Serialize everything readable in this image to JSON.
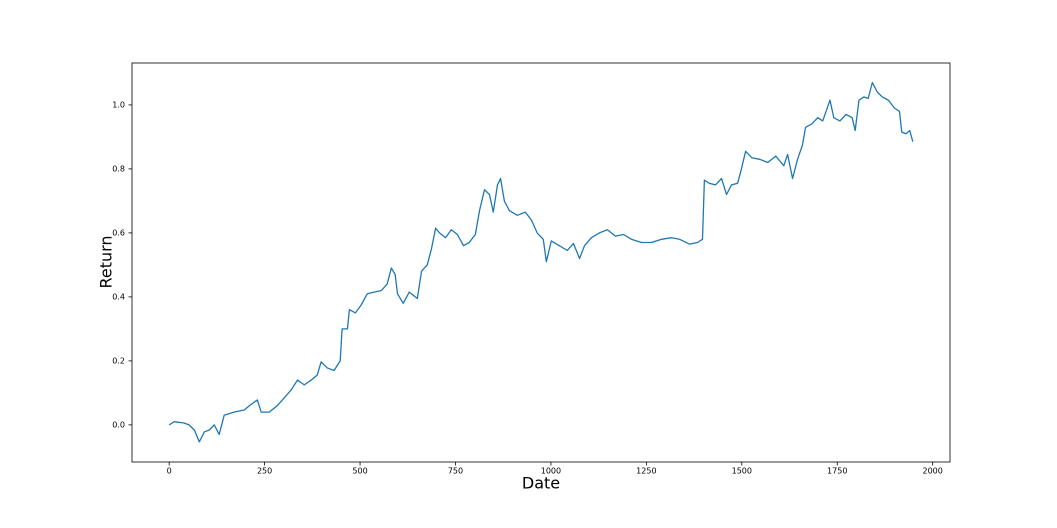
{
  "chart_data": {
    "type": "line",
    "xlabel": "Date",
    "ylabel": "Return",
    "color": "#1f77b4",
    "grid": false,
    "xlim": [
      -97.4,
      2045.4
    ],
    "xticks": [
      0,
      250,
      500,
      750,
      1000,
      1250,
      1500,
      1750,
      2000
    ],
    "ylim": [
      -0.116,
      1.131
    ],
    "yticks": [
      {
        "value": 0,
        "label": "0.0"
      },
      0.2,
      0.4,
      0.6,
      0.8,
      {
        "value": 1,
        "label": "1.0"
      }
    ],
    "x": [
      0,
      13,
      39,
      52,
      66,
      79,
      92,
      105,
      118,
      131,
      144,
      170,
      197,
      210,
      231,
      241,
      262,
      283,
      301,
      320,
      336,
      354,
      372,
      388,
      398,
      414,
      432,
      448,
      453,
      467,
      472,
      488,
      503,
      519,
      537,
      556,
      571,
      582,
      592,
      598,
      613,
      629,
      650,
      661,
      676,
      687,
      698,
      708,
      724,
      739,
      755,
      771,
      786,
      802,
      813,
      826,
      839,
      849,
      860,
      868,
      878,
      891,
      912,
      933,
      949,
      964,
      980,
      988,
      1001,
      1022,
      1043,
      1059,
      1075,
      1088,
      1106,
      1127,
      1148,
      1169,
      1190,
      1211,
      1237,
      1263,
      1290,
      1316,
      1337,
      1363,
      1384,
      1397,
      1402,
      1415,
      1431,
      1447,
      1460,
      1473,
      1489,
      1499,
      1510,
      1526,
      1547,
      1568,
      1589,
      1610,
      1620,
      1633,
      1646,
      1659,
      1667,
      1683,
      1699,
      1712,
      1731,
      1741,
      1757,
      1773,
      1789,
      1797,
      1807,
      1820,
      1831,
      1842,
      1855,
      1868,
      1884,
      1900,
      1913,
      1919,
      1930,
      1940,
      1948
    ],
    "values": [
      0,
      0.01,
      0.006,
      0,
      -0.016,
      -0.053,
      -0.022,
      -0.016,
      0,
      -0.03,
      0.03,
      0.04,
      0.047,
      0.06,
      0.078,
      0.04,
      0.04,
      0.06,
      0.084,
      0.11,
      0.14,
      0.125,
      0.14,
      0.156,
      0.197,
      0.178,
      0.17,
      0.2,
      0.3,
      0.3,
      0.36,
      0.35,
      0.375,
      0.41,
      0.415,
      0.42,
      0.44,
      0.49,
      0.47,
      0.41,
      0.38,
      0.415,
      0.395,
      0.48,
      0.5,
      0.55,
      0.615,
      0.6,
      0.585,
      0.61,
      0.595,
      0.56,
      0.57,
      0.595,
      0.67,
      0.735,
      0.72,
      0.665,
      0.75,
      0.77,
      0.7,
      0.67,
      0.655,
      0.665,
      0.64,
      0.6,
      0.58,
      0.51,
      0.575,
      0.56,
      0.545,
      0.567,
      0.52,
      0.56,
      0.585,
      0.6,
      0.61,
      0.59,
      0.595,
      0.58,
      0.57,
      0.57,
      0.58,
      0.585,
      0.58,
      0.565,
      0.57,
      0.58,
      0.765,
      0.755,
      0.75,
      0.77,
      0.72,
      0.75,
      0.755,
      0.8,
      0.855,
      0.835,
      0.83,
      0.82,
      0.84,
      0.81,
      0.845,
      0.77,
      0.83,
      0.875,
      0.93,
      0.94,
      0.96,
      0.95,
      1.015,
      0.96,
      0.95,
      0.97,
      0.96,
      0.92,
      1.015,
      1.025,
      1.02,
      1.07,
      1.04,
      1.025,
      1.015,
      0.99,
      0.98,
      0.915,
      0.91,
      0.92,
      0.885
    ]
  }
}
